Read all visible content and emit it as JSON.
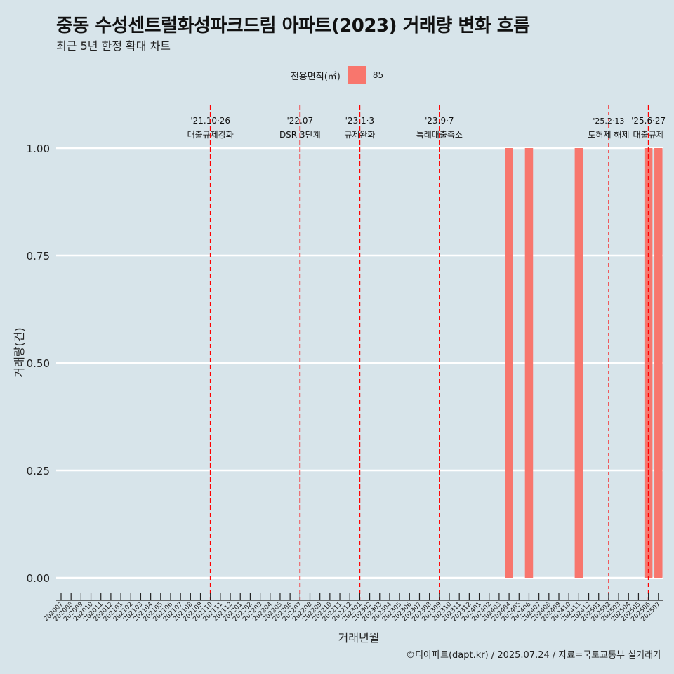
{
  "title": "중동 수성센트럴화성파크드림 아파트(2023) 거래량 변화 흐름",
  "subtitle": "최근 5년 한정 확대 차트",
  "caption": "©디아파트(dapt.kr) / 2025.07.24 / 자료=국토교통부 실거래가",
  "colors": {
    "bar": "#f8766d",
    "vline": "#ff0000",
    "background": "#d7e4ea",
    "grid": "#ffffff"
  },
  "chart_data": {
    "type": "bar",
    "xlabel": "거래년월",
    "ylabel": "거래량(건)",
    "ylim": [
      0,
      1
    ],
    "yticks": [
      "0.00",
      "0.25",
      "0.50",
      "0.75",
      "1.00"
    ],
    "grid": true,
    "legend": {
      "title": "전용면적(㎡)",
      "position": "top"
    },
    "categories": [
      "202007",
      "202008",
      "202009",
      "202010",
      "202011",
      "202012",
      "202101",
      "202102",
      "202103",
      "202104",
      "202105",
      "202106",
      "202107",
      "202108",
      "202109",
      "202110",
      "202111",
      "202112",
      "202201",
      "202202",
      "202203",
      "202204",
      "202205",
      "202206",
      "202207",
      "202208",
      "202209",
      "202210",
      "202211",
      "202212",
      "202301",
      "202302",
      "202303",
      "202304",
      "202305",
      "202306",
      "202307",
      "202308",
      "202309",
      "202310",
      "202311",
      "202312",
      "202401",
      "202402",
      "202403",
      "202404",
      "202405",
      "202406",
      "202407",
      "202408",
      "202409",
      "202410",
      "202411",
      "202412",
      "202501",
      "202502",
      "202503",
      "202504",
      "202505",
      "202506",
      "202507"
    ],
    "series": [
      {
        "name": "85",
        "values": [
          0,
          0,
          0,
          0,
          0,
          0,
          0,
          0,
          0,
          0,
          0,
          0,
          0,
          0,
          0,
          0,
          0,
          0,
          0,
          0,
          0,
          0,
          0,
          0,
          0,
          0,
          0,
          0,
          0,
          0,
          0,
          0,
          0,
          0,
          0,
          0,
          0,
          0,
          0,
          0,
          0,
          0,
          0,
          0,
          0,
          1,
          0,
          1,
          0,
          0,
          0,
          0,
          1,
          0,
          0,
          0,
          0,
          0,
          0,
          1,
          1
        ]
      }
    ],
    "annotations": [
      {
        "month": "202110",
        "date": "'21.10·26",
        "label": "대출규제강화",
        "style": "dashed"
      },
      {
        "month": "202207",
        "date": "'22.07",
        "label": "DSR 3단계",
        "style": "dashed"
      },
      {
        "month": "202301",
        "date": "'23.1·3",
        "label": "규제완화",
        "style": "dashed"
      },
      {
        "month": "202309",
        "date": "'23.9·7",
        "label": "특례대출축소",
        "style": "dashed"
      },
      {
        "month": "202502",
        "date": "'25.2·13",
        "label": "토허제 해제",
        "style": "thin"
      },
      {
        "month": "202506",
        "date": "'25.6·27",
        "label": "대출규제",
        "style": "dashed"
      }
    ]
  }
}
